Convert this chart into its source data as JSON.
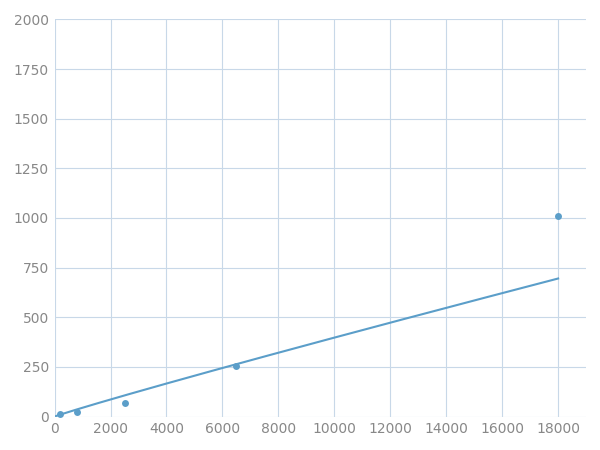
{
  "x_data": [
    200,
    800,
    2500,
    6500,
    18000
  ],
  "y_data": [
    15,
    25,
    70,
    255,
    1010
  ],
  "line_color": "#5b9ec9",
  "marker_color": "#5b9ec9",
  "marker_size": 5,
  "xlim": [
    0,
    19000
  ],
  "ylim": [
    0,
    2000
  ],
  "xticks": [
    0,
    2000,
    4000,
    6000,
    8000,
    10000,
    12000,
    14000,
    16000,
    18000
  ],
  "yticks": [
    0,
    250,
    500,
    750,
    1000,
    1250,
    1500,
    1750,
    2000
  ],
  "grid_color": "#c8d8e8",
  "plot_bg_color": "#ffffff",
  "fig_bg_color": "#ffffff",
  "tick_labelsize": 10,
  "tick_color": "#888888"
}
